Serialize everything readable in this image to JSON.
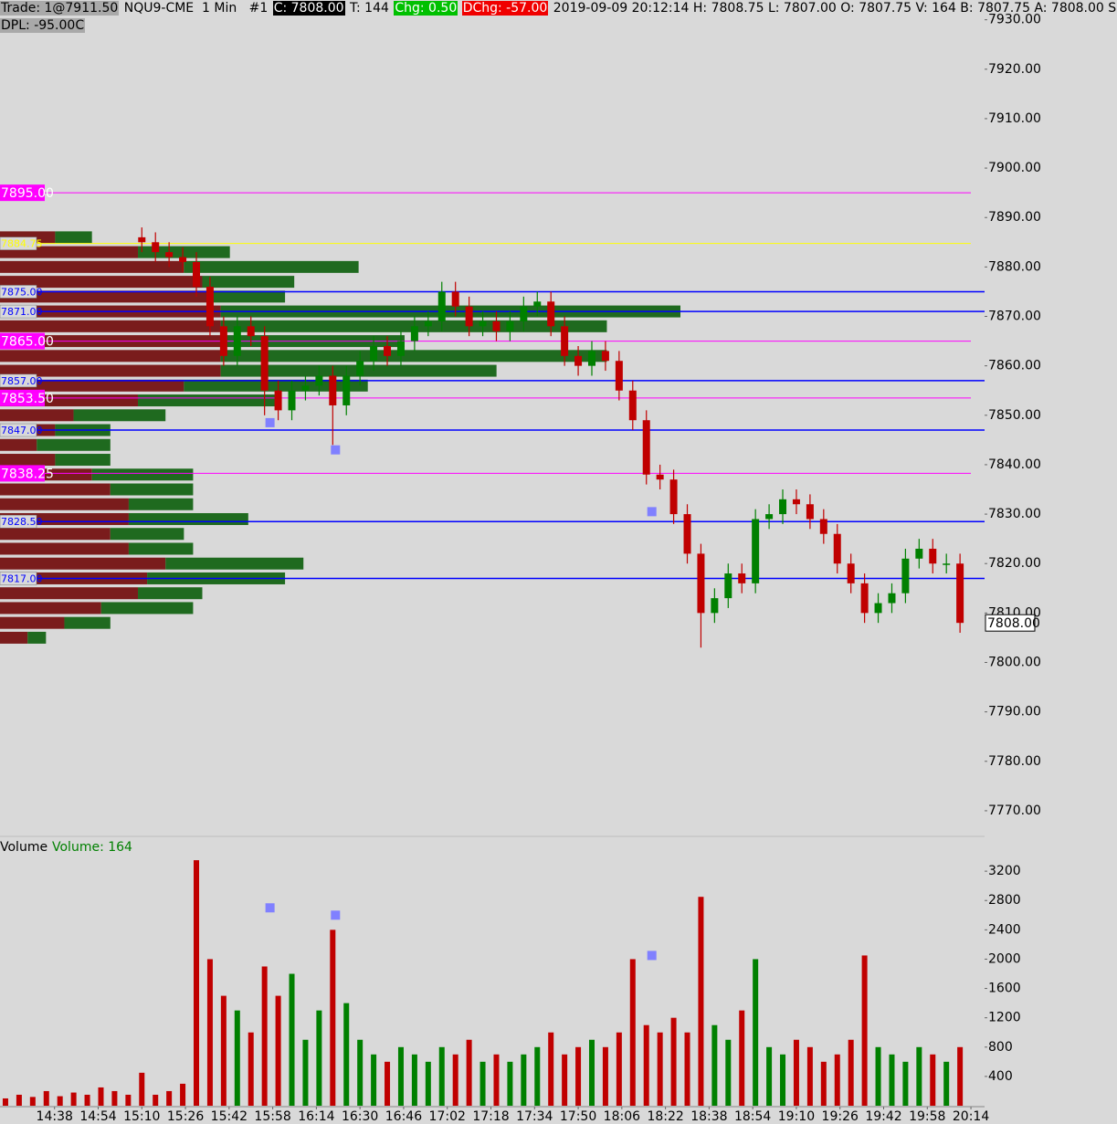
{
  "chart_data": [
    {
      "type": "candlestick",
      "header": {
        "trade": "Trade: 1@7911.50",
        "instrument": "NQU9-CME  1 Min   #1",
        "close": "C: 7808.00",
        "ticks": "T: 144",
        "change": "Chg: 0.50",
        "day_change": "DChg: -57.00",
        "stats": "2019-09-09 20:12:14 H: 7808.75 L: 7807.00 O: 7807.75 V: 164 B: 7807.75 A: 7808.00 S",
        "dpl": "DPL: -95.00C"
      },
      "x": [
        "15:10",
        "15:15",
        "15:20",
        "15:25",
        "15:30",
        "15:35",
        "15:40",
        "15:45",
        "15:50",
        "15:55",
        "16:00",
        "16:05",
        "16:10",
        "16:15",
        "16:20",
        "16:25",
        "16:30",
        "16:35",
        "16:40",
        "16:45",
        "16:50",
        "16:55",
        "17:00",
        "17:05",
        "17:10",
        "17:15",
        "17:20",
        "17:25",
        "17:30",
        "17:35",
        "17:40",
        "17:45",
        "17:50",
        "17:55",
        "18:00",
        "18:05",
        "18:10",
        "18:15",
        "18:20",
        "18:25",
        "18:30",
        "18:35",
        "18:40",
        "18:45",
        "18:50",
        "18:55",
        "19:00",
        "19:05",
        "19:10",
        "19:15",
        "19:20",
        "19:25",
        "19:30",
        "19:35",
        "19:40",
        "19:45",
        "19:50",
        "19:55",
        "20:00",
        "20:05",
        "20:10"
      ],
      "open": [
        7886,
        7885,
        7883,
        7882,
        7881,
        7876,
        7868,
        7862,
        7868,
        7866,
        7855,
        7851,
        7855,
        7856,
        7858,
        7852,
        7858,
        7861,
        7864,
        7862,
        7865,
        7868,
        7869,
        7875,
        7872,
        7868,
        7869,
        7867,
        7869,
        7872,
        7873,
        7868,
        7862,
        7860,
        7863,
        7861,
        7855,
        7849,
        7838,
        7837,
        7830,
        7822,
        7810,
        7813,
        7818,
        7816,
        7829,
        7830,
        7833,
        7832,
        7829,
        7826,
        7820,
        7816,
        7810,
        7812,
        7814,
        7821,
        7823,
        7820,
        7820
      ],
      "high": [
        7888,
        7887,
        7885,
        7884,
        7883,
        7878,
        7870,
        7870,
        7870,
        7868,
        7857,
        7857,
        7858,
        7860,
        7860,
        7860,
        7863,
        7866,
        7866,
        7867,
        7870,
        7871,
        7877,
        7877,
        7874,
        7871,
        7871,
        7871,
        7874,
        7875,
        7875,
        7870,
        7864,
        7865,
        7865,
        7863,
        7857,
        7851,
        7840,
        7839,
        7832,
        7824,
        7815,
        7820,
        7820,
        7831,
        7832,
        7835,
        7835,
        7834,
        7831,
        7828,
        7822,
        7818,
        7814,
        7816,
        7823,
        7825,
        7825,
        7822,
        7822
      ],
      "low": [
        7883,
        7881,
        7880,
        7879,
        7874,
        7866,
        7860,
        7860,
        7864,
        7850,
        7849,
        7849,
        7853,
        7854,
        7844,
        7850,
        7856,
        7859,
        7860,
        7860,
        7863,
        7866,
        7867,
        7870,
        7866,
        7866,
        7865,
        7865,
        7867,
        7870,
        7866,
        7860,
        7858,
        7858,
        7859,
        7853,
        7847,
        7836,
        7835,
        7828,
        7820,
        7803,
        7808,
        7811,
        7814,
        7814,
        7827,
        7828,
        7830,
        7827,
        7824,
        7818,
        7814,
        7808,
        7808,
        7810,
        7812,
        7819,
        7818,
        7818,
        7806
      ],
      "close": [
        7885,
        7883,
        7882,
        7881,
        7876,
        7868,
        7862,
        7868,
        7866,
        7855,
        7851,
        7855,
        7856,
        7858,
        7852,
        7858,
        7861,
        7864,
        7862,
        7865,
        7868,
        7869,
        7875,
        7872,
        7868,
        7869,
        7867,
        7869,
        7872,
        7873,
        7868,
        7862,
        7860,
        7863,
        7861,
        7855,
        7849,
        7838,
        7837,
        7830,
        7822,
        7810,
        7813,
        7818,
        7816,
        7829,
        7830,
        7833,
        7832,
        7829,
        7826,
        7820,
        7816,
        7810,
        7812,
        7814,
        7821,
        7823,
        7820,
        7820,
        7808
      ],
      "up_color": "#008000",
      "down_color": "#c00000",
      "ylim": [
        7765,
        7934
      ],
      "yticks": [
        {
          "value": 7770,
          "label": "7770.00"
        },
        {
          "value": 7780,
          "label": "7780.00"
        },
        {
          "value": 7790,
          "label": "7790.00"
        },
        {
          "value": 7800,
          "label": "7800.00"
        },
        {
          "value": 7810,
          "label": "7810.00"
        },
        {
          "value": 7820,
          "label": "7820.00"
        },
        {
          "value": 7830,
          "label": "7830.00"
        },
        {
          "value": 7840,
          "label": "7840.00"
        },
        {
          "value": 7850,
          "label": "7850.00"
        },
        {
          "value": 7860,
          "label": "7860.00"
        },
        {
          "value": 7870,
          "label": "7870.00"
        },
        {
          "value": 7880,
          "label": "7880.00"
        },
        {
          "value": 7890,
          "label": "7890.00"
        },
        {
          "value": 7900,
          "label": "7900.00"
        },
        {
          "value": 7910,
          "label": "7910.00"
        },
        {
          "value": 7920,
          "label": "7920.00"
        },
        {
          "value": 7930,
          "label": "7930.00"
        }
      ],
      "last_price": {
        "value": 7808,
        "label": "7808.00"
      },
      "levels": [
        {
          "value": 7895,
          "label": "7895.00",
          "color": "#ff00ff"
        },
        {
          "value": 7884.75,
          "label": "7884.75",
          "color": "#ffff00"
        },
        {
          "value": 7875,
          "label": "7875.00",
          "color": "#0000ff"
        },
        {
          "value": 7871,
          "label": "7871.00",
          "color": "#0000ff"
        },
        {
          "value": 7865,
          "label": "7865.00",
          "color": "#ff00ff"
        },
        {
          "value": 7857,
          "label": "7857.00",
          "color": "#0000ff"
        },
        {
          "value": 7853.5,
          "label": "7853.50",
          "color": "#ff00ff"
        },
        {
          "value": 7847,
          "label": "7847.00",
          "color": "#0000ff"
        },
        {
          "value": 7838.25,
          "label": "7838.25",
          "color": "#ff00ff"
        },
        {
          "value": 7828.5,
          "label": "7828.50",
          "color": "#0000ff"
        },
        {
          "value": 7817,
          "label": "7817.00",
          "color": "#0000ff"
        }
      ],
      "profile": {
        "prices": [
          7886,
          7883,
          7880,
          7877,
          7874,
          7871,
          7868,
          7865,
          7862,
          7859,
          7856,
          7853,
          7850,
          7847,
          7844,
          7841,
          7838,
          7835,
          7832,
          7829,
          7826,
          7823,
          7820,
          7817,
          7814,
          7811,
          7808,
          7805
        ],
        "sell": [
          60,
          150,
          200,
          220,
          230,
          240,
          240,
          240,
          240,
          240,
          200,
          150,
          80,
          60,
          40,
          60,
          100,
          120,
          140,
          140,
          120,
          140,
          180,
          160,
          150,
          110,
          70,
          30
        ],
        "buy": [
          40,
          100,
          190,
          100,
          80,
          500,
          420,
          200,
          420,
          300,
          200,
          150,
          100,
          60,
          80,
          60,
          110,
          90,
          70,
          130,
          80,
          70,
          150,
          150,
          70,
          100,
          50,
          20
        ],
        "sell_color": "#7a1c1c",
        "buy_color": "#1f6a1f"
      },
      "signals": {
        "x": [
          "15:57",
          "16:21",
          "18:17"
        ],
        "values": [
          7848.5,
          7843,
          7830.5
        ],
        "color": "#8080ff"
      }
    },
    {
      "type": "bar",
      "title": "Volume",
      "subtitle": "Volume: 164",
      "x": [
        "14:20",
        "14:25",
        "14:30",
        "14:35",
        "14:40",
        "14:45",
        "14:50",
        "14:55",
        "15:00",
        "15:05",
        "15:10",
        "15:15",
        "15:20",
        "15:25",
        "15:30",
        "15:35",
        "15:40",
        "15:45",
        "15:50",
        "15:55",
        "16:00",
        "16:05",
        "16:10",
        "16:15",
        "16:20",
        "16:25",
        "16:30",
        "16:35",
        "16:40",
        "16:45",
        "16:50",
        "16:55",
        "17:00",
        "17:05",
        "17:10",
        "17:15",
        "17:20",
        "17:25",
        "17:30",
        "17:35",
        "17:40",
        "17:45",
        "17:50",
        "17:55",
        "18:00",
        "18:05",
        "18:10",
        "18:15",
        "18:20",
        "18:25",
        "18:30",
        "18:35",
        "18:40",
        "18:45",
        "18:50",
        "18:55",
        "19:00",
        "19:05",
        "19:10",
        "19:15",
        "19:20",
        "19:25",
        "19:30",
        "19:35",
        "19:40",
        "19:45",
        "19:50",
        "19:55",
        "20:00",
        "20:05",
        "20:10"
      ],
      "values": [
        100,
        150,
        120,
        200,
        130,
        180,
        150,
        250,
        200,
        150,
        450,
        150,
        200,
        300,
        3350,
        2000,
        1500,
        1300,
        1000,
        1900,
        1500,
        1800,
        900,
        1300,
        2400,
        1400,
        900,
        700,
        600,
        800,
        700,
        600,
        800,
        700,
        900,
        600,
        700,
        600,
        700,
        800,
        1000,
        700,
        800,
        900,
        800,
        1000,
        2000,
        1100,
        1000,
        1200,
        1000,
        2850,
        1100,
        900,
        1300,
        2000,
        800,
        700,
        900,
        800,
        600,
        700,
        900,
        2050,
        800,
        700,
        600,
        800,
        700,
        600,
        800
      ],
      "xlim": [
        "14:18",
        "20:19"
      ],
      "xticks": [
        "14:38",
        "14:54",
        "15:10",
        "15:26",
        "15:42",
        "15:58",
        "16:14",
        "16:30",
        "16:46",
        "17:02",
        "17:18",
        "17:34",
        "17:50",
        "18:06",
        "18:22",
        "18:38",
        "18:54",
        "19:10",
        "19:26",
        "19:42",
        "19:58",
        "20:14"
      ],
      "ylim": [
        0,
        3650
      ],
      "yticks": [
        400,
        800,
        1200,
        1600,
        2000,
        2400,
        2800,
        3200
      ],
      "signals": {
        "x": [
          "15:57",
          "16:21",
          "18:17"
        ],
        "values": [
          2700,
          2600,
          2050
        ],
        "color": "#8080ff"
      }
    }
  ]
}
